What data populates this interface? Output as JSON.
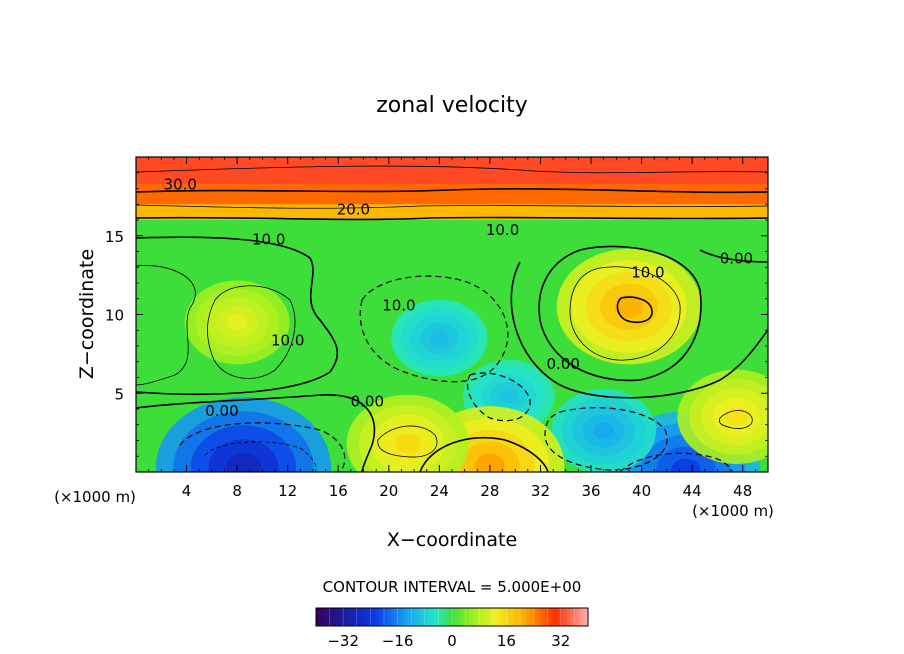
{
  "chart_data": {
    "type": "heatmap",
    "title": "zonal velocity",
    "xlabel": "X−coordinate",
    "ylabel": "Z−coordinate",
    "x_unit_label": "(×1000 m)",
    "y_unit_label": "(×1000 m)",
    "xlim": [
      0,
      50
    ],
    "ylim": [
      0,
      20
    ],
    "x_ticks": [
      4,
      8,
      12,
      16,
      20,
      24,
      28,
      32,
      36,
      40,
      44,
      48
    ],
    "y_ticks": [
      5,
      10,
      15
    ],
    "x_tick_labels": [
      "4",
      "8",
      "12",
      "16",
      "20",
      "24",
      "28",
      "32",
      "36",
      "40",
      "44",
      "48"
    ],
    "y_tick_labels": [
      "5",
      "10",
      "15"
    ],
    "contour_interval_text": "CONTOUR INTERVAL = 5.000E+00",
    "contour_labels": [
      {
        "text": "30.0",
        "x": 3.5,
        "z": 18.2
      },
      {
        "text": "20.0",
        "x": 17.2,
        "z": 16.6
      },
      {
        "text": "10.0",
        "x": 10.5,
        "z": 14.7
      },
      {
        "text": "10.0",
        "x": 29.0,
        "z": 15.3
      },
      {
        "text": "0.00",
        "x": 47.5,
        "z": 13.5
      },
      {
        "text": "10.0",
        "x": 40.5,
        "z": 12.6
      },
      {
        "text": "10.0",
        "x": 12.0,
        "z": 8.3
      },
      {
        "text": "10.0",
        "x": 20.8,
        "z": 10.5
      },
      {
        "text": "0.00",
        "x": 33.8,
        "z": 6.8
      },
      {
        "text": "0.00",
        "x": 18.3,
        "z": 4.4
      },
      {
        "text": "0.00",
        "x": 6.8,
        "z": 3.8
      }
    ],
    "features": [
      {
        "kind": "jet",
        "x": 45.0,
        "z": 18.8,
        "value": 35
      },
      {
        "kind": "max",
        "x": 39.0,
        "z": 10.5,
        "value": 21
      },
      {
        "kind": "max",
        "x": 8.0,
        "z": 9.5,
        "value": 12
      },
      {
        "kind": "min",
        "x": 8.5,
        "z": 0.3,
        "value": -28
      },
      {
        "kind": "min",
        "x": 43.5,
        "z": 0.1,
        "value": -22
      },
      {
        "kind": "min",
        "x": 37.0,
        "z": 2.6,
        "value": -12
      },
      {
        "kind": "min",
        "x": 24.0,
        "z": 8.5,
        "value": -10
      },
      {
        "kind": "min",
        "x": 29.5,
        "z": 4.8,
        "value": -9
      },
      {
        "kind": "max",
        "x": 28.0,
        "z": 0.4,
        "value": 22
      },
      {
        "kind": "max",
        "x": 21.5,
        "z": 1.8,
        "value": 16
      },
      {
        "kind": "max",
        "x": 47.5,
        "z": 3.5,
        "value": 15
      }
    ],
    "colorbar": {
      "range": [
        -40,
        40
      ],
      "ticks": [
        -32,
        -16,
        0,
        16,
        32
      ],
      "tick_labels": [
        "−32",
        "−16",
        "0",
        "16",
        "32"
      ]
    }
  }
}
